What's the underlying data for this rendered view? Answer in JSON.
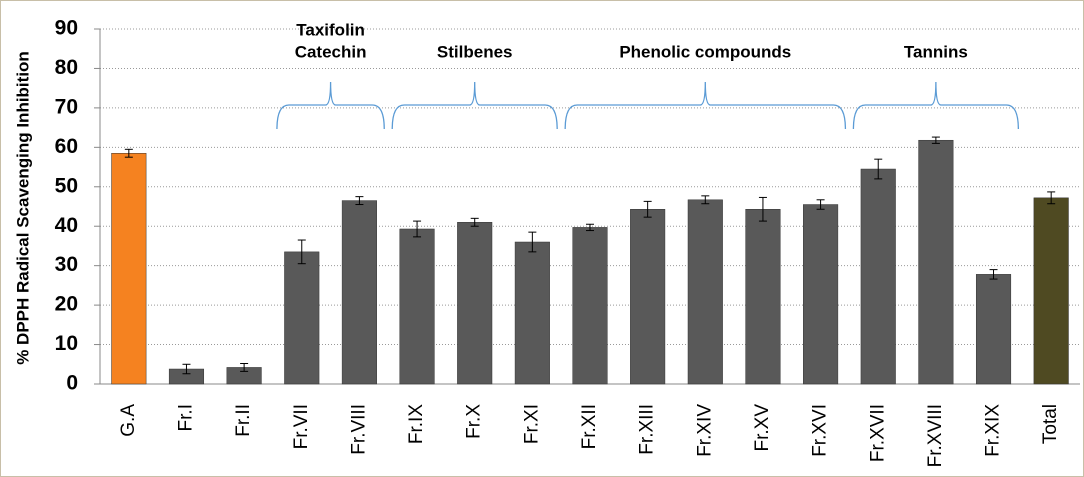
{
  "chart_data": {
    "type": "bar",
    "y_label": "% DPPH Radical Scavenging Inhibition",
    "categories": [
      "G.A",
      "Fr.I",
      "Fr.II",
      "Fr.VII",
      "Fr.VIII",
      "Fr.IX",
      "Fr.X",
      "Fr.XI",
      "Fr.XII",
      "Fr.XIII",
      "Fr.XIV",
      "Fr.XV",
      "Fr.XVI",
      "Fr.XVII",
      "Fr.XVIII",
      "Fr.XIX",
      "Total"
    ],
    "values": [
      58.5,
      3.8,
      4.2,
      33.5,
      46.5,
      39.3,
      41,
      36,
      39.7,
      44.3,
      46.7,
      44.3,
      45.5,
      54.5,
      61.8,
      27.8,
      47.2
    ],
    "errors": [
      1,
      1.2,
      1,
      3,
      1,
      2,
      1,
      2.5,
      0.8,
      2,
      1,
      3,
      1.2,
      2.5,
      0.8,
      1.2,
      1.5
    ],
    "colors": [
      "#f58220",
      "#595959",
      "#595959",
      "#595959",
      "#595959",
      "#595959",
      "#595959",
      "#595959",
      "#595959",
      "#595959",
      "#595959",
      "#595959",
      "#595959",
      "#595959",
      "#595959",
      "#595959",
      "#4f4a22"
    ],
    "ylim": [
      0,
      90
    ],
    "yticks": [
      0,
      10,
      20,
      30,
      40,
      50,
      60,
      70,
      80,
      90
    ],
    "grid": true,
    "annotations": [
      {
        "lines": [
          "Taxifolin",
          "Catechin"
        ]
      },
      {
        "lines": [
          "Stilbenes"
        ]
      },
      {
        "lines": [
          "Phenolic compounds"
        ]
      },
      {
        "lines": [
          "Tannins"
        ]
      }
    ]
  }
}
